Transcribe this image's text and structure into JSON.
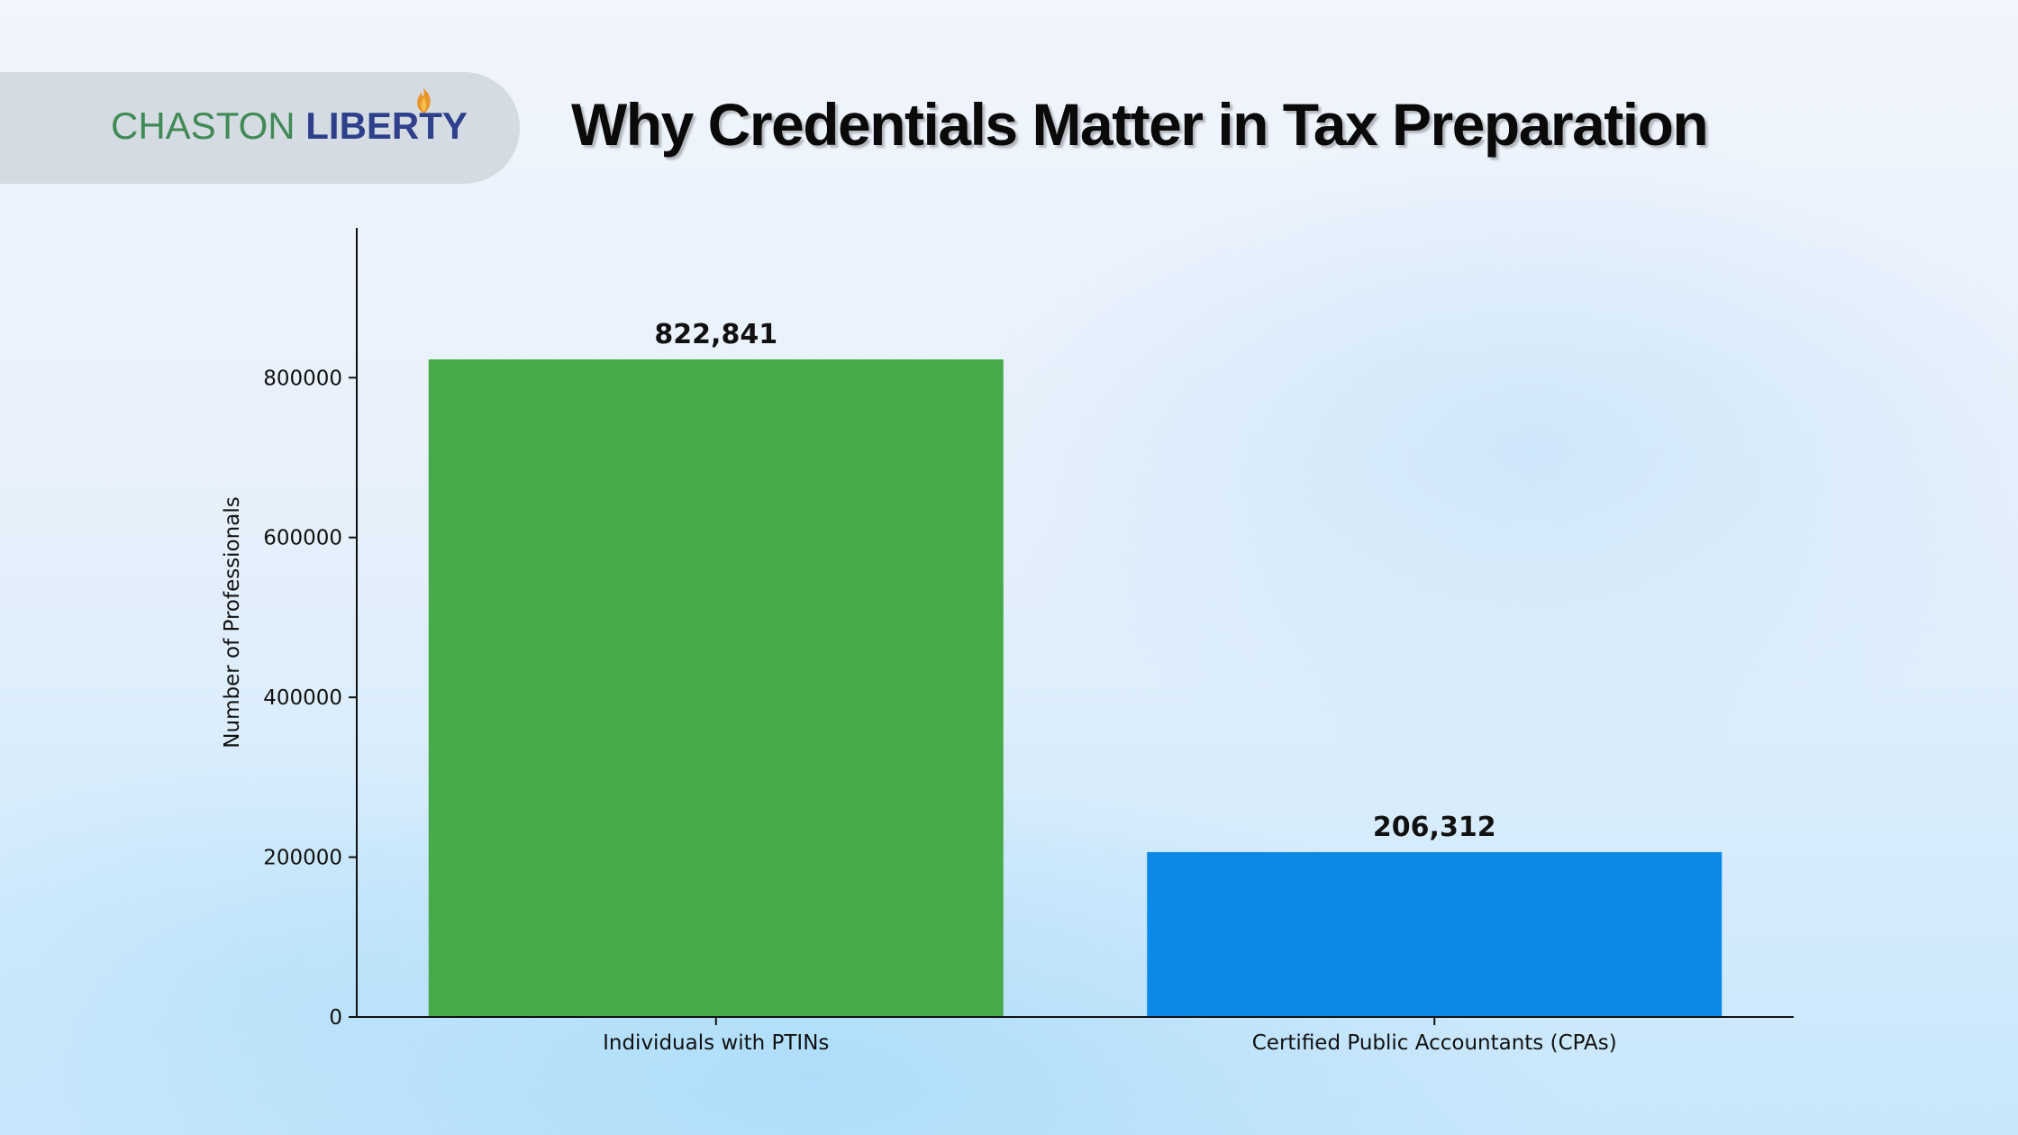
{
  "logo": {
    "word1": "CHASTON",
    "word2": "LIBERTY"
  },
  "header": {
    "title": "Why Credentials Matter in Tax Preparation"
  },
  "chart_data": {
    "type": "bar",
    "title": "Why Credentials Matter in Tax Preparation",
    "xlabel": "",
    "ylabel": "Number of Professionals",
    "categories": [
      "Individuals with PTINs",
      "Certified Public Accountants (CPAs)"
    ],
    "values": [
      822841,
      206312
    ],
    "value_labels": [
      "822,841",
      "206,312"
    ],
    "colors": [
      "#46a94a",
      "#0a8ae6"
    ],
    "ylim": [
      0,
      987409
    ],
    "yticks": [
      0,
      200000,
      400000,
      600000,
      800000
    ],
    "ytick_labels": [
      "0",
      "200000",
      "400000",
      "600000",
      "800000"
    ],
    "grid": false
  }
}
